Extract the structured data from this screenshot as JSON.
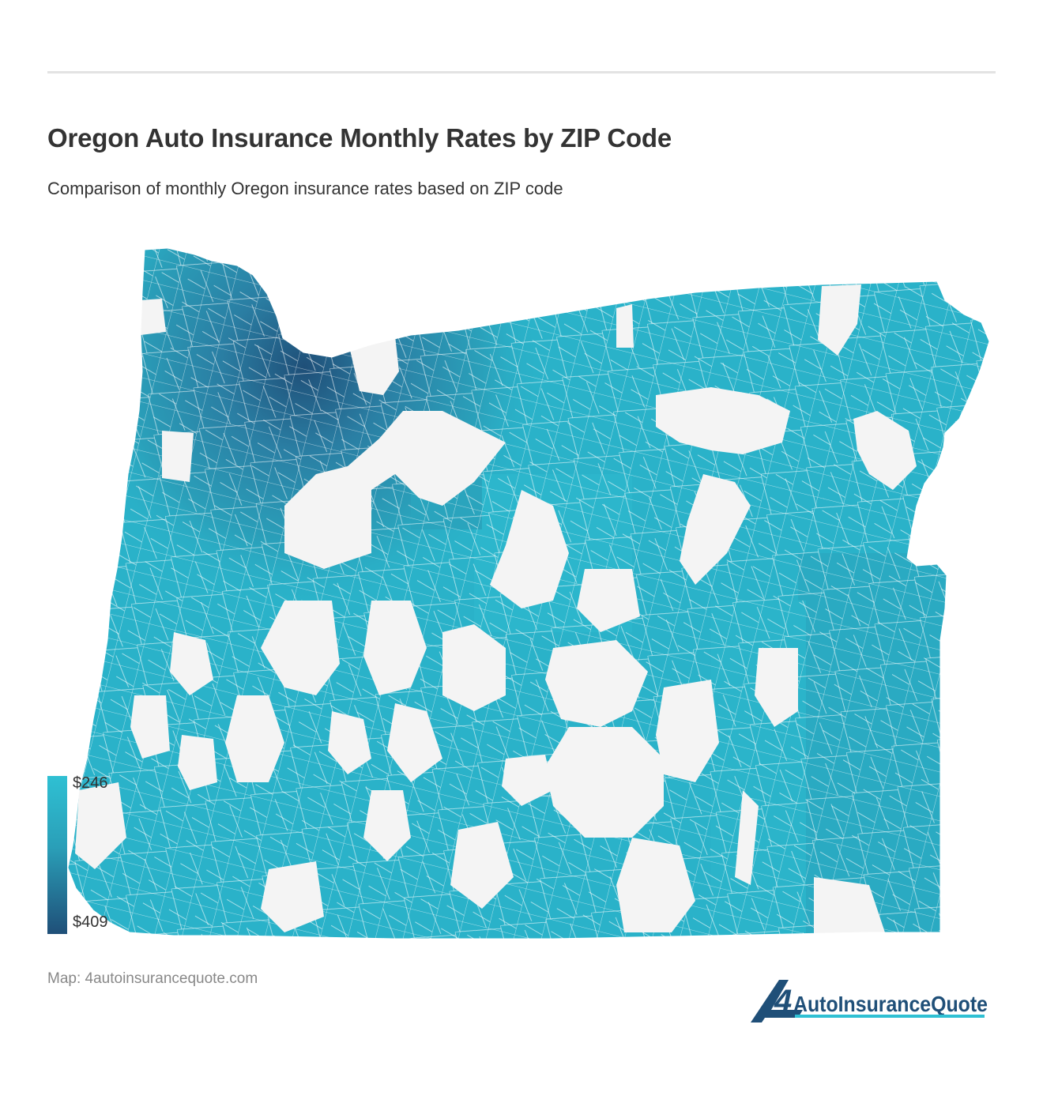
{
  "header": {
    "title": "Oregon Auto Insurance Monthly Rates by ZIP Code",
    "subtitle": "Comparison of monthly Oregon insurance rates based on ZIP code"
  },
  "legend": {
    "min_label": "$246",
    "max_label": "$409",
    "color_low": "#2fc0d3",
    "color_high": "#1f4f78"
  },
  "map": {
    "region": "Oregon",
    "no_data_color": "#f4f4f4",
    "zip_fill_mid": "#2aa6be",
    "zip_fill_dark": "#236d94"
  },
  "footer": {
    "source": "Map: 4autoinsurancequote.com",
    "logo_digit": "4",
    "logo_text": "AutoInsuranceQuote"
  }
}
